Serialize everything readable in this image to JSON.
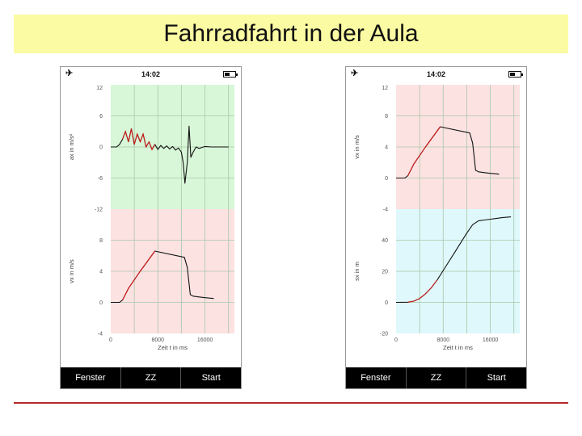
{
  "slide": {
    "title": "Fahrradfahrt in der Aula"
  },
  "phones": [
    {
      "status_time": "14:02",
      "tabs": [
        "Fenster",
        "ZZ",
        "Start"
      ],
      "xlabel": "Zeit t in ms",
      "x_ticks": [
        "0",
        "8000",
        "16000"
      ]
    },
    {
      "status_time": "14:02",
      "tabs": [
        "Fenster",
        "ZZ",
        "Start"
      ],
      "xlabel": "Zeit t in ms",
      "x_ticks": [
        "0",
        "8000",
        "16000"
      ]
    }
  ],
  "colors": {
    "acceleration_bg": "#d8f7d8",
    "velocity_bg": "#fde2e2",
    "position_bg": "#dff8fb",
    "grid": "#a8c8a8",
    "series": "#111111",
    "series_accent": "#d01818"
  },
  "chart_data": [
    {
      "type": "line",
      "panel": "left-top",
      "ylabel": "ax in m/s²",
      "y_ticks": [
        "12",
        "6",
        "0",
        "-6",
        "-12"
      ],
      "ylim": [
        -12,
        12
      ],
      "xlim": [
        0,
        21000
      ],
      "series": [
        {
          "x": [
            0,
            500,
            1000,
            1500,
            2000,
            2500,
            3000,
            3500,
            4000,
            4500,
            5000,
            5500,
            6000,
            6500,
            7000,
            7500,
            8000,
            8500,
            9000,
            9500,
            10000,
            10500,
            11000,
            11500,
            12000,
            12300,
            12600,
            13000,
            13300,
            13600,
            14000,
            14500,
            15000,
            16000,
            17000,
            18000,
            19000,
            20000
          ],
          "values": [
            0,
            0,
            0,
            0.5,
            1.5,
            3,
            1,
            3.5,
            0.5,
            2.5,
            1,
            2.5,
            0,
            1,
            -0.5,
            0.5,
            -0.5,
            0.3,
            -0.3,
            0.2,
            -0.4,
            0.1,
            -0.6,
            -0.2,
            -1,
            -3,
            -7,
            -3,
            4,
            -2,
            -1,
            0,
            -0.3,
            0.1,
            0,
            0,
            0,
            0
          ]
        }
      ]
    },
    {
      "type": "line",
      "panel": "left-bottom",
      "ylabel": "vx in m/s",
      "y_ticks": [
        "8",
        "4",
        "0",
        "-4"
      ],
      "ylim": [
        -4,
        12
      ],
      "xlim": [
        0,
        21000
      ],
      "x_ticks": [
        "0",
        "8000",
        "16000"
      ],
      "xlabel": "Zeit t in ms",
      "series": [
        {
          "x": [
            0,
            1500,
            2000,
            3000,
            5000,
            7500,
            12500,
            13000,
            13500,
            14000,
            15000,
            16000,
            17500
          ],
          "values": [
            0,
            0,
            0.3,
            1.8,
            4.0,
            6.6,
            5.8,
            4.5,
            1.0,
            0.8,
            0.7,
            0.6,
            0.5
          ]
        }
      ]
    },
    {
      "type": "line",
      "panel": "right-top",
      "ylabel": "vx in m/s",
      "y_ticks": [
        "12",
        "8",
        "4",
        "0",
        "-4"
      ],
      "ylim": [
        -4,
        12
      ],
      "xlim": [
        0,
        21000
      ],
      "series": [
        {
          "x": [
            0,
            1500,
            2000,
            3000,
            5000,
            7500,
            12500,
            13000,
            13500,
            14000,
            15000,
            16000,
            17500
          ],
          "values": [
            0,
            0,
            0.3,
            1.8,
            4.0,
            6.6,
            5.8,
            4.5,
            1.0,
            0.8,
            0.7,
            0.6,
            0.5
          ]
        }
      ]
    },
    {
      "type": "line",
      "panel": "right-bottom",
      "ylabel": "sx in m",
      "y_ticks": [
        "40",
        "20",
        "0",
        "-20"
      ],
      "ylim": [
        -20,
        60
      ],
      "xlim": [
        0,
        21000
      ],
      "x_ticks": [
        "0",
        "8000",
        "16000"
      ],
      "xlabel": "Zeit t in ms",
      "series": [
        {
          "x": [
            0,
            2000,
            3000,
            4000,
            5000,
            6000,
            7000,
            8000,
            9000,
            10000,
            11000,
            12000,
            13000,
            14000,
            15000,
            16000,
            17000,
            18000,
            19500
          ],
          "values": [
            0,
            0.1,
            0.8,
            2.5,
            5.5,
            9.5,
            14.5,
            20.5,
            26.5,
            32.5,
            38.5,
            44.5,
            50,
            52.5,
            53,
            53.5,
            54,
            54.5,
            55
          ]
        }
      ]
    }
  ]
}
